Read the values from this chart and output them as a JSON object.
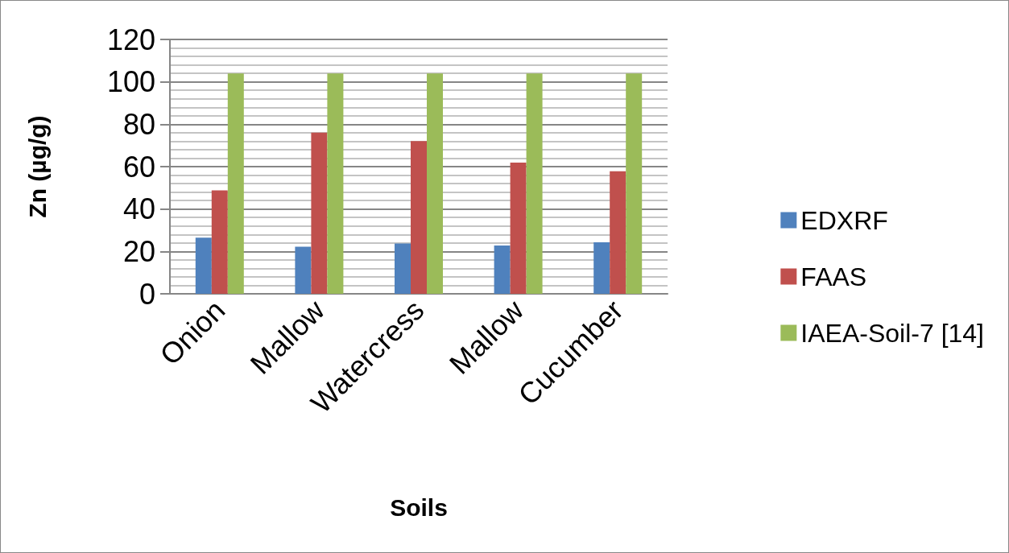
{
  "chart_data": {
    "type": "bar",
    "xlabel": "Soils",
    "ylabel": "Zn (µg/g)",
    "categories": [
      "Onion",
      "Mallow",
      "Watercress",
      "Mallow",
      "Cucumber"
    ],
    "series": [
      {
        "name": "EDXRF",
        "color": "#4f81bd",
        "values": [
          26.5,
          22.2,
          23.7,
          22.8,
          24.3
        ]
      },
      {
        "name": "FAAS",
        "color": "#c0504d",
        "values": [
          48.8,
          76,
          72.1,
          61.9,
          57.8
        ]
      },
      {
        "name": "IAEA-Soil-7 [14]",
        "color": "#9bbb59",
        "values": [
          104,
          104,
          104,
          104,
          104
        ]
      }
    ],
    "ylim": [
      0,
      120
    ],
    "yticks": [
      0,
      20,
      40,
      60,
      80,
      100,
      120
    ],
    "grid": "y",
    "legend": "right"
  }
}
